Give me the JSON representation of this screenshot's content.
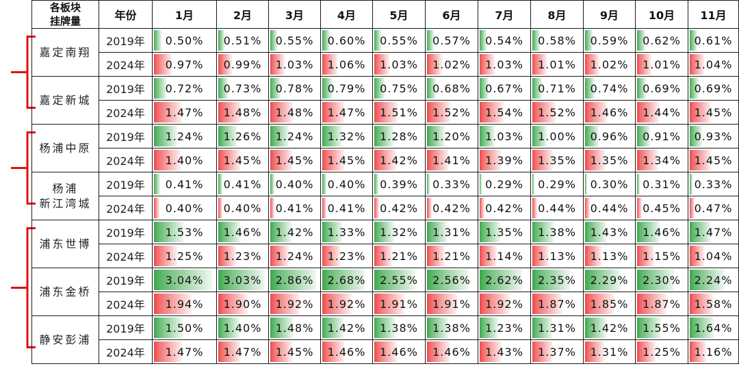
{
  "header": {
    "corner_line1": "各板块",
    "corner_line2": "挂牌量",
    "year_col": "年份",
    "months": [
      "1月",
      "2月",
      "3月",
      "4月",
      "5月",
      "6月",
      "7月",
      "8月",
      "9月",
      "10月",
      "11月"
    ]
  },
  "colors": {
    "up": "#f04848",
    "down": "#3aa84a",
    "bracket": "#e01010"
  },
  "regions": [
    {
      "name": "嘉定南翔",
      "rows": [
        {
          "year": "2019年",
          "values": [
            "0.50%",
            "0.51%",
            "0.55%",
            "0.60%",
            "0.55%",
            "0.57%",
            "0.54%",
            "0.58%",
            "0.59%",
            "0.62%",
            "0.61%"
          ],
          "colors": [
            "g",
            "g",
            "g",
            "g",
            "g",
            "g",
            "g",
            "g",
            "g",
            "g",
            "g"
          ]
        },
        {
          "year": "2024年",
          "values": [
            "0.97%",
            "0.99%",
            "1.03%",
            "1.06%",
            "1.03%",
            "1.02%",
            "1.03%",
            "1.01%",
            "1.02%",
            "1.01%",
            "1.04%"
          ],
          "colors": [
            "r",
            "r",
            "r",
            "r",
            "r",
            "r",
            "r",
            "r",
            "r",
            "r",
            "r"
          ]
        }
      ]
    },
    {
      "name": "嘉定新城",
      "rows": [
        {
          "year": "2019年",
          "values": [
            "0.72%",
            "0.73%",
            "0.78%",
            "0.79%",
            "0.75%",
            "0.68%",
            "0.67%",
            "0.71%",
            "0.74%",
            "0.69%",
            "0.69%"
          ],
          "colors": [
            "g",
            "g",
            "g",
            "g",
            "g",
            "g",
            "g",
            "g",
            "g",
            "g",
            "g"
          ]
        },
        {
          "year": "2024年",
          "values": [
            "1.47%",
            "1.48%",
            "1.48%",
            "1.47%",
            "1.51%",
            "1.52%",
            "1.54%",
            "1.52%",
            "1.46%",
            "1.44%",
            "1.45%"
          ],
          "colors": [
            "r",
            "r",
            "r",
            "r",
            "r",
            "r",
            "r",
            "r",
            "r",
            "r",
            "r"
          ]
        }
      ]
    },
    {
      "name": "杨浦中原",
      "rows": [
        {
          "year": "2019年",
          "values": [
            "1.24%",
            "1.26%",
            "1.24%",
            "1.32%",
            "1.28%",
            "1.20%",
            "1.03%",
            "1.00%",
            "0.96%",
            "0.91%",
            "0.93%"
          ],
          "colors": [
            "g",
            "g",
            "g",
            "g",
            "g",
            "g",
            "g",
            "g",
            "g",
            "g",
            "g"
          ]
        },
        {
          "year": "2024年",
          "values": [
            "1.40%",
            "1.45%",
            "1.45%",
            "1.45%",
            "1.42%",
            "1.41%",
            "1.39%",
            "1.35%",
            "1.35%",
            "1.34%",
            "1.45%"
          ],
          "colors": [
            "r",
            "r",
            "r",
            "r",
            "r",
            "r",
            "r",
            "r",
            "r",
            "r",
            "r"
          ]
        }
      ]
    },
    {
      "name": "杨浦新江湾城",
      "name_lines": [
        "杨浦",
        "新江湾城"
      ],
      "rows": [
        {
          "year": "2019年",
          "values": [
            "0.41%",
            "0.41%",
            "0.40%",
            "0.40%",
            "0.39%",
            "0.33%",
            "0.29%",
            "0.29%",
            "0.30%",
            "0.31%",
            "0.33%"
          ],
          "colors": [
            "g",
            "g",
            "g",
            "g",
            "g",
            "g",
            "g",
            "g",
            "g",
            "g",
            "g"
          ]
        },
        {
          "year": "2024年",
          "values": [
            "0.40%",
            "0.40%",
            "0.41%",
            "0.41%",
            "0.42%",
            "0.42%",
            "0.42%",
            "0.44%",
            "0.44%",
            "0.45%",
            "0.47%"
          ],
          "colors": [
            "r",
            "r",
            "r",
            "r",
            "r",
            "r",
            "r",
            "r",
            "r",
            "r",
            "r"
          ]
        }
      ]
    },
    {
      "name": "浦东世博",
      "rows": [
        {
          "year": "2019年",
          "values": [
            "1.53%",
            "1.46%",
            "1.42%",
            "1.33%",
            "1.32%",
            "1.31%",
            "1.35%",
            "1.38%",
            "1.43%",
            "1.46%",
            "1.47%"
          ],
          "colors": [
            "g",
            "g",
            "g",
            "g",
            "g",
            "g",
            "g",
            "g",
            "g",
            "g",
            "g"
          ]
        },
        {
          "year": "2024年",
          "values": [
            "1.25%",
            "1.23%",
            "1.24%",
            "1.23%",
            "1.21%",
            "1.21%",
            "1.14%",
            "1.13%",
            "1.13%",
            "1.15%",
            "1.04%"
          ],
          "colors": [
            "r",
            "r",
            "r",
            "r",
            "r",
            "r",
            "r",
            "r",
            "r",
            "r",
            "r"
          ]
        }
      ]
    },
    {
      "name": "浦东金桥",
      "rows": [
        {
          "year": "2019年",
          "values": [
            "3.04%",
            "3.03%",
            "2.86%",
            "2.68%",
            "2.55%",
            "2.56%",
            "2.62%",
            "2.35%",
            "2.29%",
            "2.30%",
            "2.24%"
          ],
          "colors": [
            "g",
            "g",
            "g",
            "g",
            "g",
            "g",
            "g",
            "g",
            "g",
            "g",
            "g"
          ]
        },
        {
          "year": "2024年",
          "values": [
            "1.94%",
            "1.90%",
            "1.92%",
            "1.92%",
            "1.91%",
            "1.91%",
            "1.92%",
            "1.87%",
            "1.85%",
            "1.87%",
            "1.58%"
          ],
          "colors": [
            "r",
            "r",
            "r",
            "r",
            "r",
            "r",
            "r",
            "r",
            "r",
            "r",
            "r"
          ]
        }
      ]
    },
    {
      "name": "静安彭浦",
      "rows": [
        {
          "year": "2019年",
          "values": [
            "1.50%",
            "1.40%",
            "1.48%",
            "1.42%",
            "1.38%",
            "1.38%",
            "1.23%",
            "1.31%",
            "1.42%",
            "1.55%",
            "1.64%"
          ],
          "colors": [
            "g",
            "g",
            "g",
            "g",
            "g",
            "g",
            "g",
            "g",
            "g",
            "g",
            "g"
          ]
        },
        {
          "year": "2024年",
          "values": [
            "1.47%",
            "1.47%",
            "1.45%",
            "1.46%",
            "1.46%",
            "1.46%",
            "1.43%",
            "1.37%",
            "1.31%",
            "1.25%",
            "1.16%"
          ],
          "colors": [
            "r",
            "r",
            "r",
            "r",
            "r",
            "r",
            "r",
            "r",
            "r",
            "r",
            "r"
          ]
        }
      ]
    }
  ]
}
